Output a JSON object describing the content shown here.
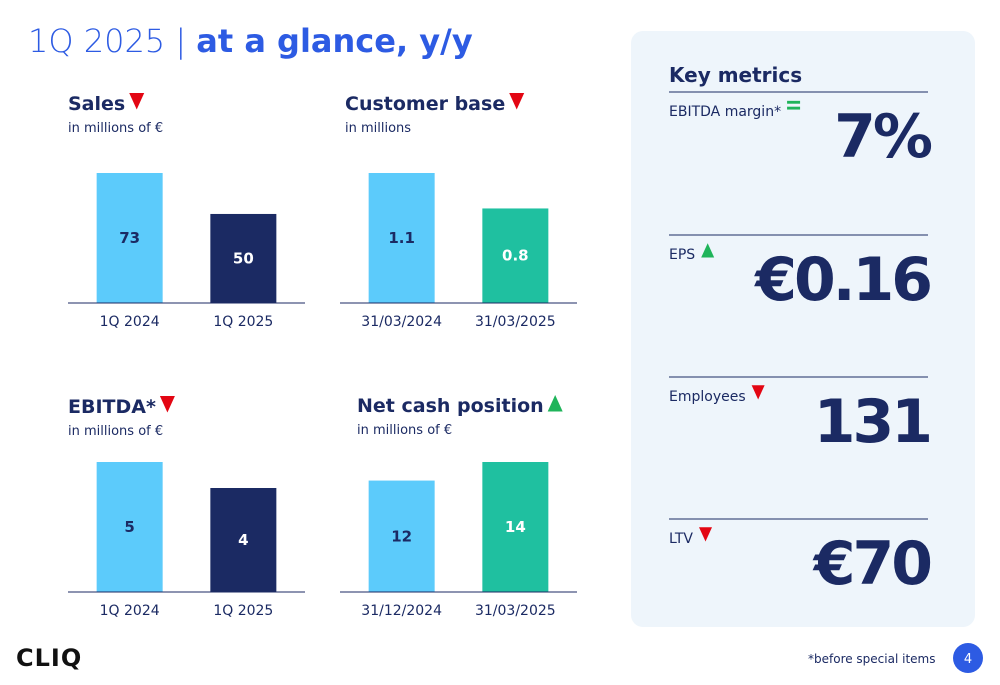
{
  "header": {
    "title_prefix": "1Q 2025 |",
    "title_emphasis": "at a glance, y/y"
  },
  "chart_data": [
    {
      "type": "bar",
      "title": "Sales",
      "subtitle": "in millions of €",
      "trend": "down",
      "categories": [
        "1Q 2024",
        "1Q 2025"
      ],
      "values": [
        73,
        50
      ],
      "colors": [
        "#5ccbfb",
        "#1b2a63"
      ]
    },
    {
      "type": "bar",
      "title": "Customer base",
      "subtitle": "in millions",
      "trend": "down",
      "categories": [
        "31/03/2024",
        "31/03/2025"
      ],
      "values": [
        1.1,
        0.8
      ],
      "colors": [
        "#5ccbfb",
        "#1fc0a0"
      ]
    },
    {
      "type": "bar",
      "title": "EBITDA*",
      "subtitle": "in millions of €",
      "trend": "down",
      "categories": [
        "1Q 2024",
        "1Q 2025"
      ],
      "values": [
        5,
        4
      ],
      "colors": [
        "#5ccbfb",
        "#1b2a63"
      ]
    },
    {
      "type": "bar",
      "title": "Net cash position",
      "subtitle": "in millions of €",
      "trend": "up",
      "categories": [
        "31/12/2024",
        "31/03/2025"
      ],
      "values": [
        12,
        14
      ],
      "colors": [
        "#5ccbfb",
        "#1fc0a0"
      ]
    }
  ],
  "key_metrics": {
    "title": "Key metrics",
    "items": [
      {
        "label": "EBITDA margin*",
        "value": "7%",
        "trend": "equal"
      },
      {
        "label": "EPS",
        "value": "€0.16",
        "trend": "up"
      },
      {
        "label": "Employees",
        "value": "131",
        "trend": "down"
      },
      {
        "label": "LTV",
        "value": "€70",
        "trend": "down"
      }
    ]
  },
  "footer": {
    "logo": "CLIQ",
    "note": "*before special items",
    "page": "4"
  }
}
